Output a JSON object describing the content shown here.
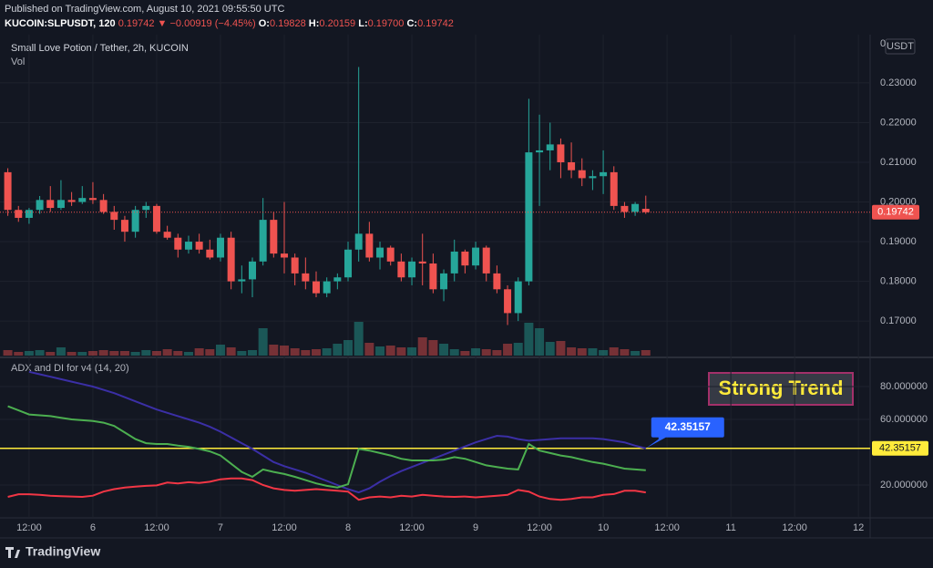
{
  "header": {
    "published": "Published on TradingView.com, August 10, 2021 09:55:50 UTC",
    "symbol": "KUCOIN:SLPUSDT, 120",
    "change": "−0.00919 (−4.45%)",
    "ohlc": [
      {
        "label": "O:",
        "value": "0.19828"
      },
      {
        "label": "H:",
        "value": "0.20159"
      },
      {
        "label": "L:",
        "value": "0.19700"
      },
      {
        "label": "C:",
        "value": "0.19742"
      }
    ],
    "brand": "TradingView"
  },
  "chart_data": [
    {
      "type": "candlestick",
      "title": "Small Love Potion / Tether, 2h, KUCOIN",
      "volume_label": "Vol",
      "currency": "USDT",
      "axis_top_label": "0",
      "up_color": "#26a69a",
      "down_color": "#ef5350",
      "grid": true,
      "x": [
        -16,
        -14,
        -12,
        -10,
        -8,
        -6,
        -4,
        -2,
        0,
        2,
        4,
        6,
        8,
        10,
        12,
        14,
        16,
        18,
        20,
        22,
        24,
        26,
        28,
        30,
        32,
        34,
        36,
        38,
        40,
        42,
        44,
        46,
        48,
        50,
        52,
        54,
        56,
        58,
        60,
        62,
        64,
        66,
        68,
        70,
        72,
        74,
        76,
        78,
        80,
        82,
        84,
        86,
        88,
        90,
        92,
        94,
        96,
        98,
        100,
        102,
        104
      ],
      "open": [
        0.2075,
        0.198,
        0.196,
        0.198,
        0.2005,
        0.1985,
        0.2005,
        0.2,
        0.201,
        0.2005,
        0.1975,
        0.1955,
        0.1925,
        0.198,
        0.199,
        0.1925,
        0.191,
        0.188,
        0.19,
        0.188,
        0.186,
        0.191,
        0.18,
        0.1805,
        0.185,
        0.1955,
        0.187,
        0.186,
        0.182,
        0.18,
        0.177,
        0.18,
        0.181,
        0.188,
        0.192,
        0.186,
        0.1885,
        0.185,
        0.181,
        0.185,
        0.1845,
        0.178,
        0.182,
        0.1875,
        0.184,
        0.1885,
        0.182,
        0.178,
        0.172,
        0.18,
        0.2125,
        0.213,
        0.2145,
        0.21,
        0.208,
        0.206,
        0.2065,
        0.2075,
        0.199,
        0.1975,
        0.19828
      ],
      "high": [
        0.2085,
        0.199,
        0.1985,
        0.2015,
        0.204,
        0.2055,
        0.2025,
        0.204,
        0.205,
        0.202,
        0.199,
        0.1965,
        0.199,
        0.2,
        0.1995,
        0.194,
        0.192,
        0.1915,
        0.192,
        0.1905,
        0.192,
        0.1925,
        0.184,
        0.186,
        0.201,
        0.1975,
        0.2,
        0.187,
        0.186,
        0.1825,
        0.181,
        0.182,
        0.19,
        0.234,
        0.195,
        0.19,
        0.189,
        0.187,
        0.186,
        0.192,
        0.187,
        0.183,
        0.1905,
        0.188,
        0.19,
        0.189,
        0.184,
        0.179,
        0.181,
        0.226,
        0.222,
        0.22,
        0.216,
        0.215,
        0.211,
        0.208,
        0.213,
        0.209,
        0.2,
        0.2,
        0.20159
      ],
      "low": [
        0.1965,
        0.195,
        0.1945,
        0.197,
        0.1975,
        0.198,
        0.199,
        0.1995,
        0.1995,
        0.197,
        0.193,
        0.19,
        0.191,
        0.196,
        0.192,
        0.1905,
        0.186,
        0.187,
        0.187,
        0.1855,
        0.185,
        0.178,
        0.177,
        0.176,
        0.184,
        0.186,
        0.182,
        0.179,
        0.178,
        0.176,
        0.176,
        0.178,
        0.18,
        0.185,
        0.185,
        0.183,
        0.184,
        0.18,
        0.179,
        0.179,
        0.177,
        0.175,
        0.18,
        0.182,
        0.183,
        0.18,
        0.177,
        0.169,
        0.17,
        0.179,
        0.199,
        0.208,
        0.206,
        0.206,
        0.204,
        0.203,
        0.202,
        0.198,
        0.196,
        0.1965,
        0.197
      ],
      "close": [
        0.198,
        0.196,
        0.198,
        0.2005,
        0.1985,
        0.2005,
        0.2,
        0.201,
        0.2005,
        0.1975,
        0.1955,
        0.1925,
        0.198,
        0.199,
        0.1925,
        0.191,
        0.188,
        0.19,
        0.188,
        0.186,
        0.191,
        0.18,
        0.1805,
        0.185,
        0.1955,
        0.187,
        0.186,
        0.182,
        0.18,
        0.177,
        0.18,
        0.181,
        0.188,
        0.192,
        0.186,
        0.1885,
        0.185,
        0.181,
        0.185,
        0.1845,
        0.178,
        0.182,
        0.1875,
        0.184,
        0.1885,
        0.182,
        0.178,
        0.172,
        0.18,
        0.2125,
        0.213,
        0.2145,
        0.21,
        0.208,
        0.206,
        0.2065,
        0.2075,
        0.199,
        0.1975,
        0.1995,
        0.19742
      ],
      "volume": [
        6,
        4,
        5,
        6,
        4,
        9,
        4,
        4,
        5,
        6,
        5,
        5,
        4,
        6,
        5,
        7,
        5,
        4,
        8,
        7,
        12,
        9,
        5,
        6,
        30,
        12,
        11,
        8,
        6,
        7,
        8,
        13,
        17,
        37,
        14,
        10,
        11,
        9,
        9,
        20,
        17,
        13,
        7,
        5,
        8,
        7,
        6,
        13,
        14,
        36,
        30,
        15,
        16,
        9,
        8,
        8,
        6,
        9,
        7,
        5,
        6
      ],
      "vlim": [
        0,
        350
      ],
      "xlim": [
        -16.1,
        146.2
      ],
      "xticks": [
        {
          "value": -12,
          "label": "12:00"
        },
        {
          "value": 0,
          "label": "6"
        },
        {
          "value": 12,
          "label": "12:00"
        },
        {
          "value": 24,
          "label": "7"
        },
        {
          "value": 36,
          "label": "12:00"
        },
        {
          "value": 48,
          "label": "8"
        },
        {
          "value": 60,
          "label": "12:00"
        },
        {
          "value": 72,
          "label": "9"
        },
        {
          "value": 84,
          "label": "12:00"
        },
        {
          "value": 96,
          "label": "10"
        },
        {
          "value": 108,
          "label": "12:00"
        },
        {
          "value": 120,
          "label": "11"
        },
        {
          "value": 132,
          "label": "12:00"
        },
        {
          "value": 144,
          "label": "12"
        }
      ],
      "ylim": [
        0.1613,
        0.2417
      ],
      "yticks": [
        {
          "value": 0.17,
          "label": "0.17000"
        },
        {
          "value": 0.18,
          "label": "0.18000"
        },
        {
          "value": 0.19,
          "label": "0.19000"
        },
        {
          "value": 0.2,
          "label": "0.20000"
        },
        {
          "value": 0.21,
          "label": "0.21000"
        },
        {
          "value": 0.22,
          "label": "0.22000"
        },
        {
          "value": 0.23,
          "label": "0.23000"
        }
      ]
    },
    {
      "type": "line",
      "title": "ADX and DI for v4 (14, 20)",
      "annotation": "Strong Trend",
      "hline": 42.35157,
      "hline_color": "#ffeb3b",
      "ylim": [
        0,
        96.1
      ],
      "yticks": [
        {
          "value": 20,
          "label": "20.000000"
        },
        {
          "value": 60,
          "label": "60.000000"
        },
        {
          "value": 80,
          "label": "80.000000"
        }
      ],
      "series": [
        {
          "color": "#3b2fa6",
          "values": [
            null,
            null,
            89,
            87.5,
            86,
            84.5,
            83,
            81.5,
            80,
            78,
            76,
            73.5,
            71,
            68.5,
            66,
            64,
            62,
            60,
            58,
            55.5,
            52.5,
            49,
            45.5,
            42,
            38,
            34,
            31.5,
            29.5,
            27.5,
            25,
            22.5,
            20,
            17.5,
            15.5,
            18,
            22,
            25.5,
            28.5,
            31,
            33.5,
            36,
            38.5,
            41,
            43.5,
            46,
            48,
            50,
            49.5,
            48,
            47,
            47.5,
            48,
            48.5,
            48.5,
            48.5,
            48.5,
            48,
            47,
            46,
            44,
            42.35157
          ]
        },
        {
          "color": "#4caf50",
          "values": [
            68,
            65.5,
            63,
            62.5,
            62,
            61,
            60,
            59.5,
            59,
            58,
            56,
            52,
            48,
            45.5,
            45,
            45,
            44,
            43.3,
            42,
            40.5,
            38,
            33,
            28,
            25,
            29.5,
            28,
            26.7,
            25,
            23,
            21,
            19.5,
            18.5,
            20.5,
            42,
            41,
            39.5,
            38,
            36,
            35,
            35,
            35,
            35.5,
            37,
            36,
            34,
            32,
            31,
            30,
            29.5,
            45,
            41,
            39.5,
            38,
            37,
            35.5,
            34,
            33,
            31.5,
            30,
            29.5,
            29
          ]
        },
        {
          "color": "#f23645",
          "values": [
            12.8,
            14.4,
            14.4,
            14,
            13.5,
            13.2,
            13,
            12.8,
            13.5,
            16,
            17.5,
            18.5,
            19,
            19.5,
            19.8,
            21.5,
            21,
            21.7,
            21.2,
            22,
            23.5,
            24,
            24,
            23,
            20,
            18,
            17,
            16.5,
            17,
            17.5,
            17,
            16.5,
            16,
            11,
            12.5,
            13,
            12.5,
            13.5,
            13,
            14,
            13.5,
            13,
            12.8,
            13,
            12.5,
            13,
            13.5,
            14,
            17,
            16,
            13,
            11.5,
            11,
            11.5,
            12.5,
            12.5,
            14,
            14.5,
            16.5,
            16.5,
            15.5
          ]
        }
      ]
    }
  ]
}
